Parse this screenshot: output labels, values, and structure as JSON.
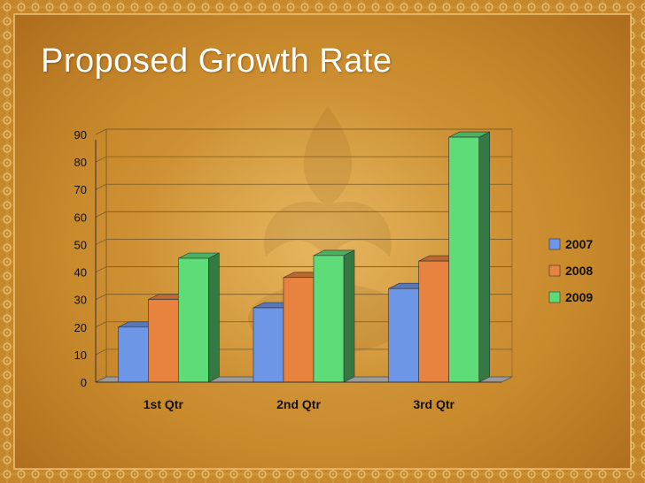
{
  "slide": {
    "title": "Proposed Growth Rate"
  },
  "colors": {
    "2007": "#6e96e6",
    "2008": "#e8823f",
    "2009": "#5edc78"
  },
  "chart_data": {
    "type": "bar",
    "style": "3d-clustered-column",
    "title": "",
    "xlabel": "",
    "ylabel": "",
    "categories": [
      "1st Qtr",
      "2nd Qtr",
      "3rd Qtr"
    ],
    "series": [
      {
        "name": "2007",
        "values": [
          20,
          27,
          34
        ]
      },
      {
        "name": "2008",
        "values": [
          30,
          38,
          44
        ]
      },
      {
        "name": "2009",
        "values": [
          45,
          46,
          89
        ]
      }
    ],
    "ylim": [
      0,
      90
    ],
    "yticks": [
      "0",
      "10",
      "20",
      "30",
      "40",
      "50",
      "60",
      "70",
      "80",
      "90"
    ],
    "grid": true,
    "legend": "right"
  }
}
